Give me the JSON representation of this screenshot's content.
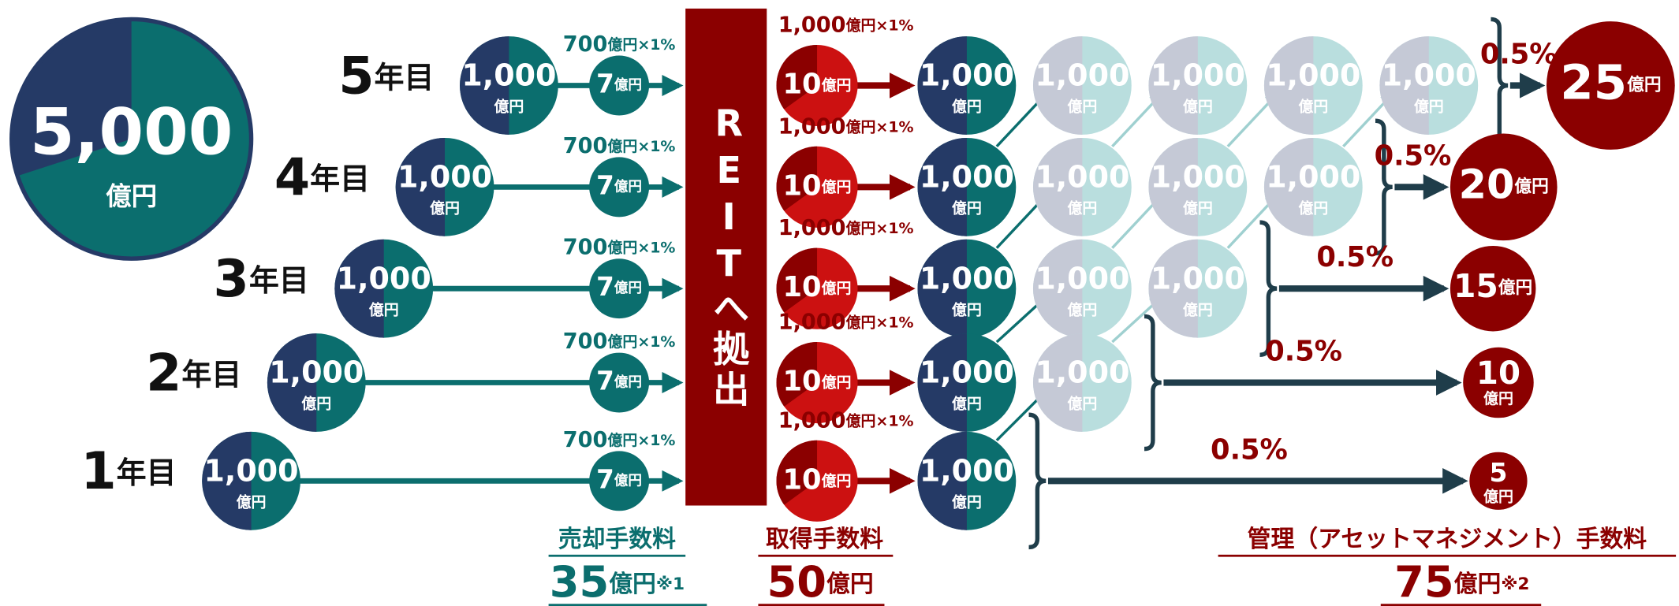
{
  "total": {
    "amount": "5,000",
    "unit": "億円"
  },
  "reit": "REITへ拠出",
  "rows": [
    {
      "year_num": "5",
      "year_unit": "年目",
      "circle": {
        "amount": "1,000",
        "unit": "億円"
      },
      "sale_formula": {
        "amount": "700",
        "unit": "億円×1%"
      },
      "sale_fee": {
        "amount": "7",
        "unit": "億円"
      },
      "acq_formula": {
        "amount": "1,000",
        "unit": "億円×1%"
      },
      "acq_fee": {
        "amount": "10",
        "unit": "億円"
      },
      "reit_circle": {
        "amount": "1,000",
        "unit": "億円"
      },
      "faded": [
        {
          "amount": "1,000",
          "unit": "億円"
        },
        {
          "amount": "1,000",
          "unit": "億円"
        },
        {
          "amount": "1,000",
          "unit": "億円"
        },
        {
          "amount": "1,000",
          "unit": "億円"
        }
      ],
      "rate": "0.5%",
      "mgmt_fee": {
        "amount": "25",
        "unit": "億円"
      }
    },
    {
      "year_num": "4",
      "year_unit": "年目",
      "circle": {
        "amount": "1,000",
        "unit": "億円"
      },
      "sale_formula": {
        "amount": "700",
        "unit": "億円×1%"
      },
      "sale_fee": {
        "amount": "7",
        "unit": "億円"
      },
      "acq_formula": {
        "amount": "1,000",
        "unit": "億円×1%"
      },
      "acq_fee": {
        "amount": "10",
        "unit": "億円"
      },
      "reit_circle": {
        "amount": "1,000",
        "unit": "億円"
      },
      "faded": [
        {
          "amount": "1,000",
          "unit": "億円"
        },
        {
          "amount": "1,000",
          "unit": "億円"
        },
        {
          "amount": "1,000",
          "unit": "億円"
        }
      ],
      "rate": "0.5%",
      "mgmt_fee": {
        "amount": "20",
        "unit": "億円"
      }
    },
    {
      "year_num": "3",
      "year_unit": "年目",
      "circle": {
        "amount": "1,000",
        "unit": "億円"
      },
      "sale_formula": {
        "amount": "700",
        "unit": "億円×1%"
      },
      "sale_fee": {
        "amount": "7",
        "unit": "億円"
      },
      "acq_formula": {
        "amount": "1,000",
        "unit": "億円×1%"
      },
      "acq_fee": {
        "amount": "10",
        "unit": "億円"
      },
      "reit_circle": {
        "amount": "1,000",
        "unit": "億円"
      },
      "faded": [
        {
          "amount": "1,000",
          "unit": "億円"
        },
        {
          "amount": "1,000",
          "unit": "億円"
        }
      ],
      "rate": "0.5%",
      "mgmt_fee": {
        "amount": "15",
        "unit": "億円"
      }
    },
    {
      "year_num": "2",
      "year_unit": "年目",
      "circle": {
        "amount": "1,000",
        "unit": "億円"
      },
      "sale_formula": {
        "amount": "700",
        "unit": "億円×1%"
      },
      "sale_fee": {
        "amount": "7",
        "unit": "億円"
      },
      "acq_formula": {
        "amount": "1,000",
        "unit": "億円×1%"
      },
      "acq_fee": {
        "amount": "10",
        "unit": "億円"
      },
      "reit_circle": {
        "amount": "1,000",
        "unit": "億円"
      },
      "faded": [
        {
          "amount": "1,000",
          "unit": "億円"
        }
      ],
      "rate": "0.5%",
      "mgmt_fee": {
        "amount": "10",
        "unit": "億円"
      }
    },
    {
      "year_num": "1",
      "year_unit": "年目",
      "circle": {
        "amount": "1,000",
        "unit": "億円"
      },
      "sale_formula": {
        "amount": "700",
        "unit": "億円×1%"
      },
      "sale_fee": {
        "amount": "7",
        "unit": "億円"
      },
      "acq_formula": {
        "amount": "1,000",
        "unit": "億円×1%"
      },
      "acq_fee": {
        "amount": "10",
        "unit": "億円"
      },
      "reit_circle": {
        "amount": "1,000",
        "unit": "億円"
      },
      "faded": [],
      "rate": "0.5%",
      "mgmt_fee": {
        "amount": "5",
        "unit": "億円"
      }
    }
  ],
  "footer": {
    "sale": {
      "label": "売却手数料",
      "amount": "35",
      "unit": "億円",
      "note": "※1"
    },
    "acq": {
      "label": "取得手数料",
      "amount": "50",
      "unit": "億円"
    },
    "mgmt": {
      "label": "管理（アセットマネジメント）手数料",
      "amount": "75",
      "unit": "億円",
      "note": "※2"
    }
  }
}
